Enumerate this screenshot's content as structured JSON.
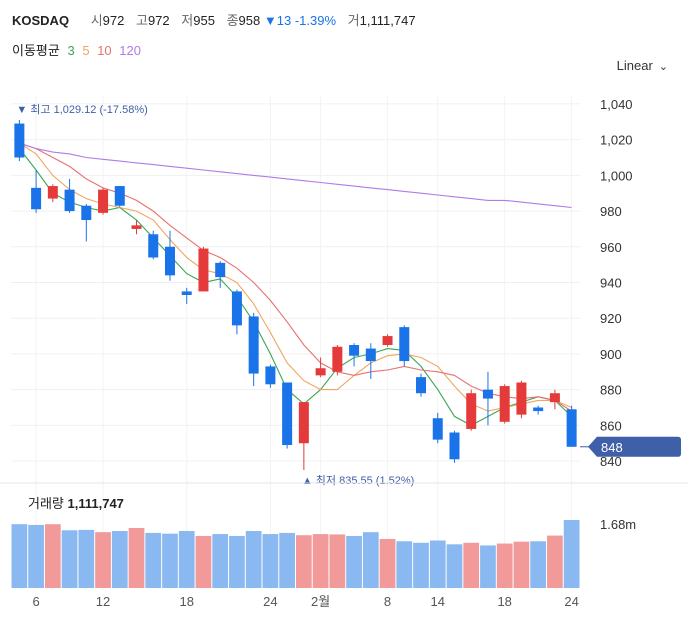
{
  "header": {
    "name": "KOSDAQ",
    "open_label": "시",
    "open": "972",
    "high_label": "고",
    "high": "972",
    "low_label": "저",
    "low": "955",
    "close_label": "종",
    "close": "958",
    "change_arrow": "▼",
    "change": "13",
    "change_pct": "-1.39%",
    "volume_label": "거",
    "volume": "1,111,747"
  },
  "moving_average": {
    "label": "이동평균",
    "periods": [
      "3",
      "5",
      "10",
      "120"
    ],
    "colors": [
      "#3aa655",
      "#f0a560",
      "#e8716f",
      "#b07be8"
    ]
  },
  "scale_selector": {
    "label": "Linear",
    "icon": "chevron-down-icon"
  },
  "annotations": {
    "high": "▼ 최고 1,029.12 (-17.58%)",
    "low": "▲ 최저 835.55 (1.52%)"
  },
  "price_tag": "848",
  "volume_panel": {
    "label": "거래량",
    "value": "1,111,747",
    "axis_label": "1.68m"
  },
  "colors": {
    "up": "#e53a3a",
    "down": "#1a73e8",
    "up_vol": "#f29a9a",
    "down_vol": "#8ab8f0",
    "tag": "#3f5fa8"
  },
  "chart_data": {
    "type": "candlestick",
    "y_ticks": [
      "1,040",
      "1,020",
      "1,000",
      "980",
      "960",
      "940",
      "920",
      "900",
      "880",
      "860",
      "840"
    ],
    "ylim": [
      835,
      1045
    ],
    "x_ticks": [
      "6",
      "12",
      "18",
      "24",
      "2월",
      "8",
      "14",
      "18",
      "24"
    ],
    "candles": [
      {
        "o": 1029,
        "h": 1031,
        "l": 1008,
        "c": 1010
      },
      {
        "o": 993,
        "h": 1003,
        "l": 979,
        "c": 981
      },
      {
        "o": 987,
        "h": 995,
        "l": 985,
        "c": 994
      },
      {
        "o": 992,
        "h": 998,
        "l": 979,
        "c": 980
      },
      {
        "o": 983,
        "h": 984,
        "l": 963,
        "c": 975
      },
      {
        "o": 979,
        "h": 993,
        "l": 978,
        "c": 992
      },
      {
        "o": 994,
        "h": 994,
        "l": 982,
        "c": 983
      },
      {
        "o": 970,
        "h": 975,
        "l": 967,
        "c": 972
      },
      {
        "o": 967,
        "h": 969,
        "l": 953,
        "c": 954
      },
      {
        "o": 960,
        "h": 969,
        "l": 941,
        "c": 944
      },
      {
        "o": 935,
        "h": 937,
        "l": 928,
        "c": 933
      },
      {
        "o": 935,
        "h": 960,
        "l": 935,
        "c": 959
      },
      {
        "o": 951,
        "h": 952,
        "l": 937,
        "c": 943
      },
      {
        "o": 935,
        "h": 936,
        "l": 911,
        "c": 916
      },
      {
        "o": 921,
        "h": 923,
        "l": 882,
        "c": 889
      },
      {
        "o": 893,
        "h": 894,
        "l": 881,
        "c": 883
      },
      {
        "o": 884,
        "h": 884,
        "l": 847,
        "c": 849
      },
      {
        "o": 850,
        "h": 873,
        "l": 835,
        "c": 873
      },
      {
        "o": 888,
        "h": 898,
        "l": 887,
        "c": 892
      },
      {
        "o": 890,
        "h": 905,
        "l": 888,
        "c": 904
      },
      {
        "o": 905,
        "h": 906,
        "l": 893,
        "c": 899
      },
      {
        "o": 903,
        "h": 906,
        "l": 886,
        "c": 896
      },
      {
        "o": 905,
        "h": 911,
        "l": 904,
        "c": 910
      },
      {
        "o": 915,
        "h": 916,
        "l": 893,
        "c": 896
      },
      {
        "o": 887,
        "h": 889,
        "l": 876,
        "c": 878
      },
      {
        "o": 864,
        "h": 867,
        "l": 850,
        "c": 852
      },
      {
        "o": 856,
        "h": 857,
        "l": 839,
        "c": 841
      },
      {
        "o": 858,
        "h": 880,
        "l": 857,
        "c": 878
      },
      {
        "o": 880,
        "h": 890,
        "l": 860,
        "c": 875
      },
      {
        "o": 862,
        "h": 883,
        "l": 861,
        "c": 882
      },
      {
        "o": 866,
        "h": 885,
        "l": 864,
        "c": 884
      },
      {
        "o": 870,
        "h": 871,
        "l": 866,
        "c": 868
      },
      {
        "o": 873,
        "h": 880,
        "l": 869,
        "c": 878
      },
      {
        "o": 869,
        "h": 871,
        "l": 848,
        "c": 848
      }
    ],
    "ma3": [
      1015,
      1003,
      990,
      985,
      982,
      980,
      982,
      975,
      965,
      955,
      945,
      940,
      942,
      932,
      918,
      900,
      880,
      872,
      880,
      892,
      898,
      900,
      903,
      902,
      893,
      880,
      865,
      860,
      865,
      870,
      873,
      876,
      874,
      865
    ],
    "ma5": [
      1018,
      1012,
      1000,
      992,
      987,
      984,
      982,
      980,
      975,
      964,
      954,
      947,
      945,
      940,
      928,
      912,
      895,
      885,
      880,
      880,
      888,
      895,
      899,
      900,
      898,
      893,
      882,
      872,
      868,
      870,
      872,
      874,
      874,
      870
    ],
    "ma10": [
      1018,
      1015,
      1010,
      1005,
      998,
      993,
      990,
      986,
      980,
      972,
      965,
      958,
      954,
      948,
      940,
      930,
      918,
      905,
      895,
      890,
      888,
      890,
      891,
      893,
      891,
      890,
      888,
      882,
      878,
      876,
      875,
      876,
      874,
      868
    ],
    "ma120": [
      1018,
      1015,
      1013,
      1012,
      1010,
      1009,
      1008,
      1007,
      1006,
      1005,
      1004,
      1003,
      1002,
      1001,
      1000,
      999,
      998,
      997,
      996,
      995,
      994,
      993,
      992,
      991,
      990,
      989,
      988,
      987,
      986,
      986,
      985,
      984,
      983,
      982
    ],
    "volume": {
      "axis_label": "1.68m",
      "values": [
        1.68,
        1.66,
        1.68,
        1.52,
        1.53,
        1.47,
        1.5,
        1.58,
        1.45,
        1.43,
        1.5,
        1.37,
        1.42,
        1.37,
        1.5,
        1.42,
        1.45,
        1.39,
        1.42,
        1.41,
        1.37,
        1.47,
        1.29,
        1.23,
        1.19,
        1.25,
        1.15,
        1.19,
        1.12,
        1.17,
        1.22,
        1.23,
        1.38,
        1.79
      ]
    }
  }
}
